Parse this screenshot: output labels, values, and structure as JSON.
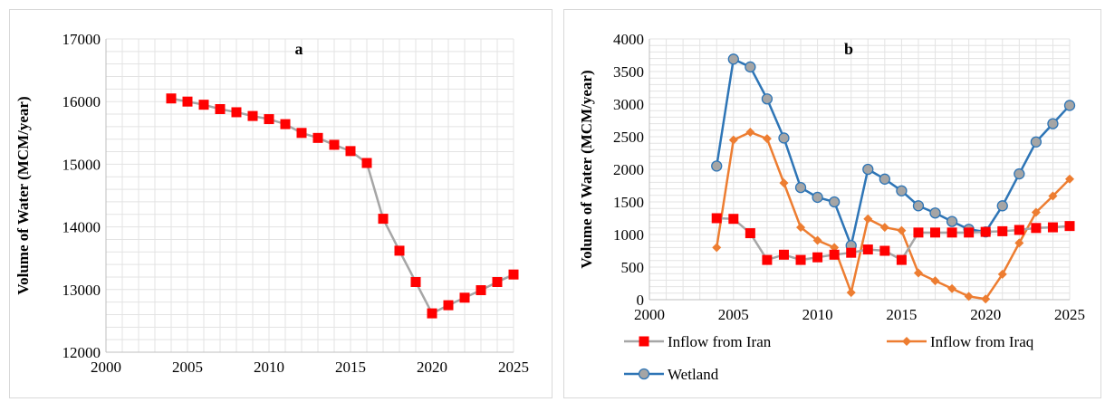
{
  "chart_data": [
    {
      "type": "scatter",
      "title": "a",
      "ylabel": "Volume of Water (MCM/year)",
      "xlabel": "",
      "xlim": [
        2000,
        2025
      ],
      "ylim": [
        12000,
        17000
      ],
      "xticks": [
        2000,
        2005,
        2010,
        2015,
        2020,
        2025
      ],
      "yticks": [
        12000,
        13000,
        14000,
        15000,
        16000,
        17000
      ],
      "grid": true,
      "colors": {
        "marker": "#ff0000",
        "line": "#a6a6a6"
      },
      "series": [
        {
          "name": "",
          "x": [
            2004,
            2005,
            2006,
            2007,
            2008,
            2009,
            2010,
            2011,
            2012,
            2013,
            2014,
            2015,
            2016,
            2017,
            2018,
            2019,
            2020,
            2021,
            2022,
            2023,
            2024,
            2025
          ],
          "y": [
            16050,
            16000,
            15950,
            15880,
            15830,
            15770,
            15720,
            15640,
            15500,
            15420,
            15310,
            15210,
            15020,
            14130,
            13620,
            13120,
            12620,
            12750,
            12870,
            12990,
            13120,
            13240
          ]
        }
      ]
    },
    {
      "type": "line",
      "title": "b",
      "ylabel": "Volume of Water (MCM/year)",
      "xlabel": "",
      "xlim": [
        2000,
        2025
      ],
      "ylim": [
        0,
        4000
      ],
      "xticks": [
        2000,
        2005,
        2010,
        2015,
        2020,
        2025
      ],
      "yticks": [
        0,
        500,
        1000,
        1500,
        2000,
        2500,
        3000,
        3500,
        4000
      ],
      "grid": true,
      "legend": "bottom",
      "x": [
        2004,
        2005,
        2006,
        2007,
        2008,
        2009,
        2010,
        2011,
        2012,
        2013,
        2014,
        2015,
        2016,
        2017,
        2018,
        2019,
        2020,
        2021,
        2022,
        2023,
        2024,
        2025
      ],
      "series": [
        {
          "name": "Inflow from Iran",
          "color": "#a6a6a6",
          "marker_color": "#ff0000",
          "marker": "square",
          "values": [
            1250,
            1240,
            1020,
            610,
            690,
            610,
            650,
            690,
            720,
            770,
            750,
            610,
            1030,
            1030,
            1030,
            1030,
            1040,
            1050,
            1070,
            1100,
            1110,
            1130
          ]
        },
        {
          "name": "Inflow from Iraq",
          "color": "#ed7d31",
          "marker_color": "#ed7d31",
          "marker": "diamond",
          "values": [
            800,
            2450,
            2570,
            2470,
            1790,
            1110,
            910,
            800,
            110,
            1240,
            1110,
            1060,
            410,
            290,
            170,
            50,
            10,
            390,
            870,
            1340,
            1590,
            1850
          ]
        },
        {
          "name": "Wetland",
          "color": "#2e75b6",
          "marker_color": "#a5a5a5",
          "marker": "circle",
          "values": [
            2050,
            3690,
            3570,
            3080,
            2480,
            1720,
            1570,
            1500,
            830,
            2000,
            1850,
            1670,
            1440,
            1330,
            1200,
            1080,
            1040,
            1440,
            1930,
            2420,
            2700,
            2980
          ]
        }
      ]
    }
  ]
}
